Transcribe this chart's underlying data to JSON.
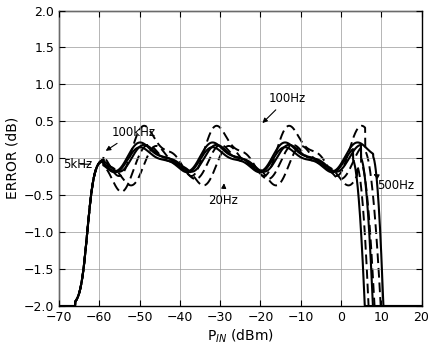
{
  "title": "",
  "xlabel": "P$_{IN}$ (dBm)",
  "ylabel": "ERROR (dB)",
  "xlim": [
    -70,
    20
  ],
  "ylim": [
    -2.0,
    2.0
  ],
  "xticks": [
    -70,
    -60,
    -50,
    -40,
    -30,
    -20,
    -10,
    0,
    10,
    20
  ],
  "yticks": [
    -2.0,
    -1.5,
    -1.0,
    -0.5,
    0.0,
    0.5,
    1.0,
    1.5,
    2.0
  ],
  "grid_color": "#999999",
  "bg_color": "#ffffff"
}
